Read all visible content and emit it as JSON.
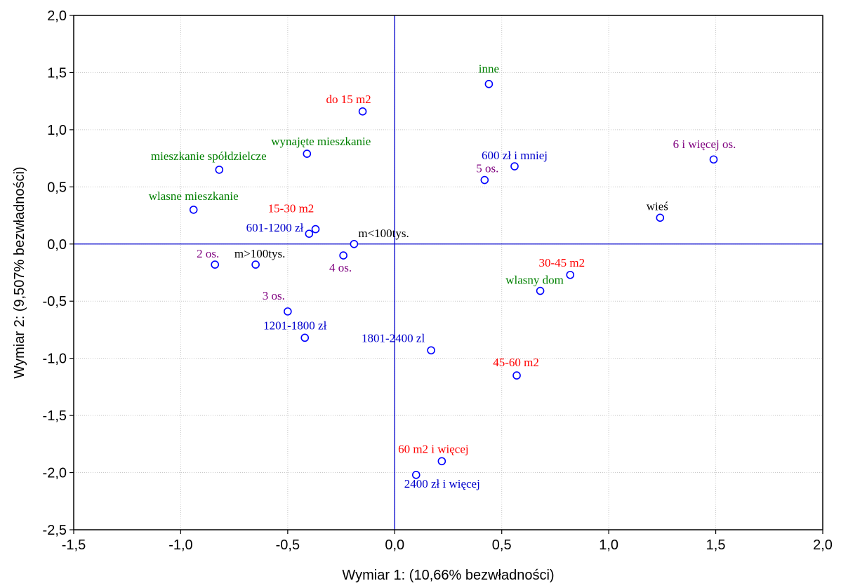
{
  "chart_data": {
    "type": "scatter",
    "title": "",
    "xlabel": "Wymiar 1: (10,66% bezwładności)",
    "ylabel": "Wymiar 2: (9,507% bezwładności)",
    "xlim": [
      -1.5,
      2.0
    ],
    "ylim": [
      -2.5,
      2.0
    ],
    "xticks": [
      "-1,5",
      "-1,0",
      "-0,5",
      "0,0",
      "0,5",
      "1,0",
      "1,5",
      "2,0"
    ],
    "yticks": [
      "2,0",
      "1,5",
      "1,0",
      "0,5",
      "0,0",
      "-0,5",
      "-1,0",
      "-1,5",
      "-2,0",
      "-2,5"
    ],
    "grid": true,
    "reference_lines": {
      "x": 0,
      "y": 0
    },
    "colors": {
      "red": "#ff0000",
      "blue": "#0000cc",
      "green": "#008000",
      "purple": "#7f007f",
      "black": "#000000"
    },
    "points": [
      {
        "label": "inne",
        "x": 0.44,
        "y": 1.4,
        "color": "green"
      },
      {
        "label": "do 15 m2",
        "x": -0.15,
        "y": 1.16,
        "color": "red"
      },
      {
        "label": "wynajęte mieszkanie",
        "x": -0.41,
        "y": 0.79,
        "color": "green"
      },
      {
        "label": "mieszkanie spółdzielcze",
        "x": -0.82,
        "y": 0.65,
        "color": "green"
      },
      {
        "label": "600 zł i mniej",
        "x": 0.56,
        "y": 0.68,
        "color": "blue"
      },
      {
        "label": "5 os.",
        "x": 0.42,
        "y": 0.56,
        "color": "purple"
      },
      {
        "label": "6 i więcej os.",
        "x": 1.49,
        "y": 0.74,
        "color": "purple"
      },
      {
        "label": "wlasne mieszkanie",
        "x": -0.94,
        "y": 0.3,
        "color": "green"
      },
      {
        "label": "15-30 m2",
        "x": -0.37,
        "y": 0.13,
        "color": "red"
      },
      {
        "label": "601-1200 zł",
        "x": -0.4,
        "y": 0.09,
        "color": "blue"
      },
      {
        "label": "m<100tys.",
        "x": -0.19,
        "y": 0.0,
        "color": "black"
      },
      {
        "label": "wieś",
        "x": 1.24,
        "y": 0.23,
        "color": "black"
      },
      {
        "label": "2 os.",
        "x": -0.84,
        "y": -0.18,
        "color": "purple"
      },
      {
        "label": "m>100tys.",
        "x": -0.65,
        "y": -0.18,
        "color": "black"
      },
      {
        "label": "4 os.",
        "x": -0.24,
        "y": -0.1,
        "color": "purple"
      },
      {
        "label": "30-45 m2",
        "x": 0.82,
        "y": -0.27,
        "color": "red"
      },
      {
        "label": "wlasny dom",
        "x": 0.68,
        "y": -0.41,
        "color": "green"
      },
      {
        "label": "3 os.",
        "x": -0.5,
        "y": -0.59,
        "color": "purple"
      },
      {
        "label": "1201-1800 zł",
        "x": -0.42,
        "y": -0.82,
        "color": "blue"
      },
      {
        "label": "1801-2400 zl",
        "x": 0.17,
        "y": -0.93,
        "color": "blue"
      },
      {
        "label": "45-60 m2",
        "x": 0.57,
        "y": -1.15,
        "color": "red"
      },
      {
        "label": "60 m2 i więcej",
        "x": 0.22,
        "y": -1.9,
        "color": "red"
      },
      {
        "label": "2400 zł i więcej",
        "x": 0.1,
        "y": -2.02,
        "color": "blue"
      }
    ]
  }
}
